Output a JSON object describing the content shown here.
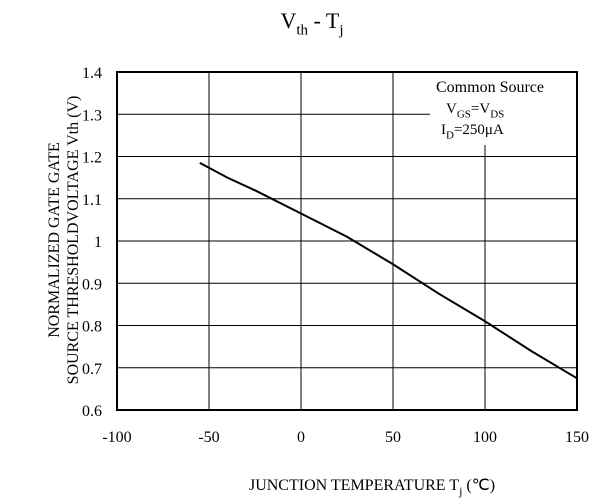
{
  "chart_data": {
    "type": "line",
    "title": [
      "V",
      "th",
      " - T",
      "j"
    ],
    "x_label": [
      "JUNCTION TEMPERATURE  T",
      "j",
      " (℃)"
    ],
    "y_label": [
      "NORMALIZED GATE GATE",
      "SOURCE THRESHOLDVOLTAGE  Vth (V)"
    ],
    "annotation": {
      "line1": "Common Source",
      "line2": [
        "V",
        "GS",
        "=V",
        "DS"
      ],
      "line3": [
        "I",
        "D",
        "=250μA"
      ]
    },
    "x": [
      -55,
      -40,
      -25,
      0,
      25,
      50,
      75,
      100,
      125,
      150
    ],
    "series": [
      {
        "color": "#000000",
        "values": [
          1.185,
          1.15,
          1.12,
          1.065,
          1.01,
          0.945,
          0.875,
          0.81,
          0.74,
          0.675
        ]
      }
    ],
    "xlim": [
      -100,
      150
    ],
    "xticks": [
      -100,
      -50,
      0,
      50,
      100,
      150
    ],
    "ylim": [
      0.6,
      1.4
    ],
    "yticks": [
      0.6,
      0.7,
      0.8,
      0.9,
      1,
      1.1,
      1.2,
      1.3,
      1.4
    ],
    "grid": true
  }
}
